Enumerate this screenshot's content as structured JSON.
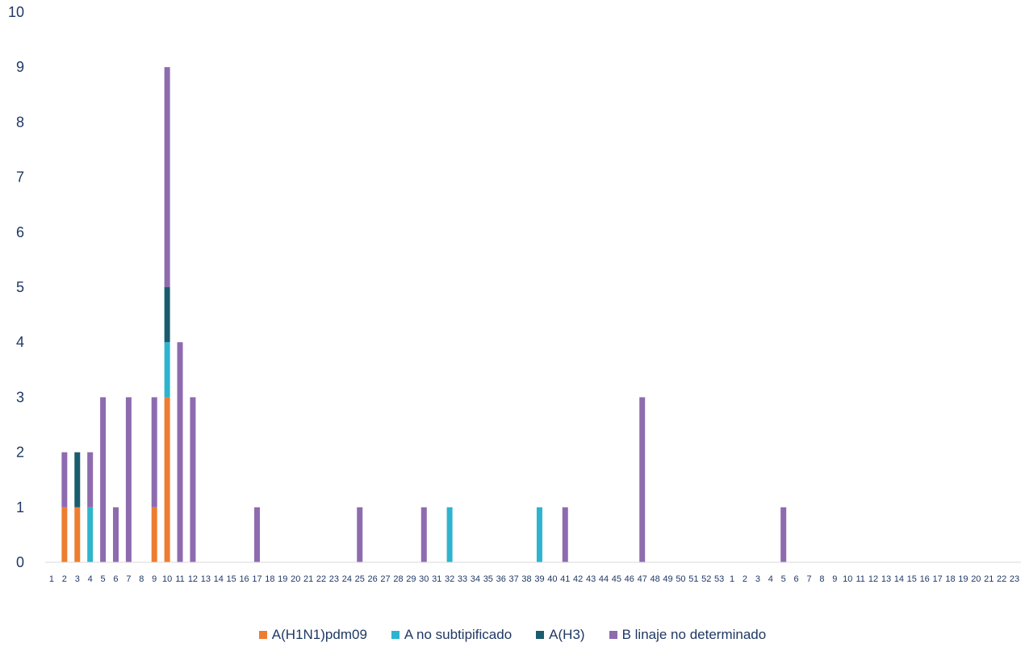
{
  "chart_data": {
    "type": "bar",
    "stacked": true,
    "ylim": [
      0,
      10
    ],
    "yticks": [
      "0",
      "1",
      "2",
      "3",
      "4",
      "5",
      "6",
      "7",
      "8",
      "9",
      "10"
    ],
    "categories": [
      "1",
      "2",
      "3",
      "4",
      "5",
      "6",
      "7",
      "8",
      "9",
      "10",
      "11",
      "12",
      "13",
      "14",
      "15",
      "16",
      "17",
      "18",
      "19",
      "20",
      "21",
      "22",
      "23",
      "24",
      "25",
      "26",
      "27",
      "28",
      "29",
      "30",
      "31",
      "32",
      "33",
      "34",
      "35",
      "36",
      "37",
      "38",
      "39",
      "40",
      "41",
      "42",
      "43",
      "44",
      "45",
      "46",
      "47",
      "48",
      "49",
      "50",
      "51",
      "52",
      "53",
      "1",
      "2",
      "3",
      "4",
      "5",
      "6",
      "7",
      "8",
      "9",
      "10",
      "11",
      "12",
      "13",
      "14",
      "15",
      "16",
      "17",
      "18",
      "19",
      "20",
      "21",
      "22",
      "23"
    ],
    "series": [
      {
        "name": "A(H1N1)pdm09",
        "color": "#ED7D31",
        "values": [
          0,
          1,
          1,
          0,
          0,
          0,
          0,
          0,
          1,
          3,
          0,
          0,
          0,
          0,
          0,
          0,
          0,
          0,
          0,
          0,
          0,
          0,
          0,
          0,
          0,
          0,
          0,
          0,
          0,
          0,
          0,
          0,
          0,
          0,
          0,
          0,
          0,
          0,
          0,
          0,
          0,
          0,
          0,
          0,
          0,
          0,
          0,
          0,
          0,
          0,
          0,
          0,
          0,
          0,
          0,
          0,
          0,
          0,
          0,
          0,
          0,
          0,
          0,
          0,
          0,
          0,
          0,
          0,
          0,
          0,
          0,
          0,
          0,
          0,
          0,
          0
        ]
      },
      {
        "name": "A no subtipificado",
        "color": "#2EB4CF",
        "values": [
          0,
          0,
          0,
          1,
          0,
          0,
          0,
          0,
          0,
          1,
          0,
          0,
          0,
          0,
          0,
          0,
          0,
          0,
          0,
          0,
          0,
          0,
          0,
          0,
          0,
          0,
          0,
          0,
          0,
          0,
          0,
          1,
          0,
          0,
          0,
          0,
          0,
          0,
          1,
          0,
          0,
          0,
          0,
          0,
          0,
          0,
          0,
          0,
          0,
          0,
          0,
          0,
          0,
          0,
          0,
          0,
          0,
          0,
          0,
          0,
          0,
          0,
          0,
          0,
          0,
          0,
          0,
          0,
          0,
          0,
          0,
          0,
          0,
          0,
          0,
          0
        ]
      },
      {
        "name": "A(H3)",
        "color": "#1A5C6E",
        "values": [
          0,
          0,
          1,
          0,
          0,
          0,
          0,
          0,
          0,
          1,
          0,
          0,
          0,
          0,
          0,
          0,
          0,
          0,
          0,
          0,
          0,
          0,
          0,
          0,
          0,
          0,
          0,
          0,
          0,
          0,
          0,
          0,
          0,
          0,
          0,
          0,
          0,
          0,
          0,
          0,
          0,
          0,
          0,
          0,
          0,
          0,
          0,
          0,
          0,
          0,
          0,
          0,
          0,
          0,
          0,
          0,
          0,
          0,
          0,
          0,
          0,
          0,
          0,
          0,
          0,
          0,
          0,
          0,
          0,
          0,
          0,
          0,
          0,
          0,
          0,
          0
        ]
      },
      {
        "name": "B linaje no determinado",
        "color": "#8E6BAF",
        "values": [
          0,
          1,
          0,
          1,
          3,
          1,
          3,
          0,
          2,
          4,
          4,
          3,
          0,
          0,
          0,
          0,
          1,
          0,
          0,
          0,
          0,
          0,
          0,
          0,
          1,
          0,
          0,
          0,
          0,
          1,
          0,
          0,
          0,
          0,
          0,
          0,
          0,
          0,
          0,
          0,
          1,
          0,
          0,
          0,
          0,
          0,
          3,
          0,
          0,
          0,
          0,
          0,
          0,
          0,
          0,
          0,
          0,
          1,
          0,
          0,
          0,
          0,
          0,
          0,
          0,
          0,
          0,
          0,
          0,
          0,
          0,
          0,
          0,
          0,
          0,
          0
        ]
      }
    ],
    "legend": "bottom",
    "grid": false
  }
}
